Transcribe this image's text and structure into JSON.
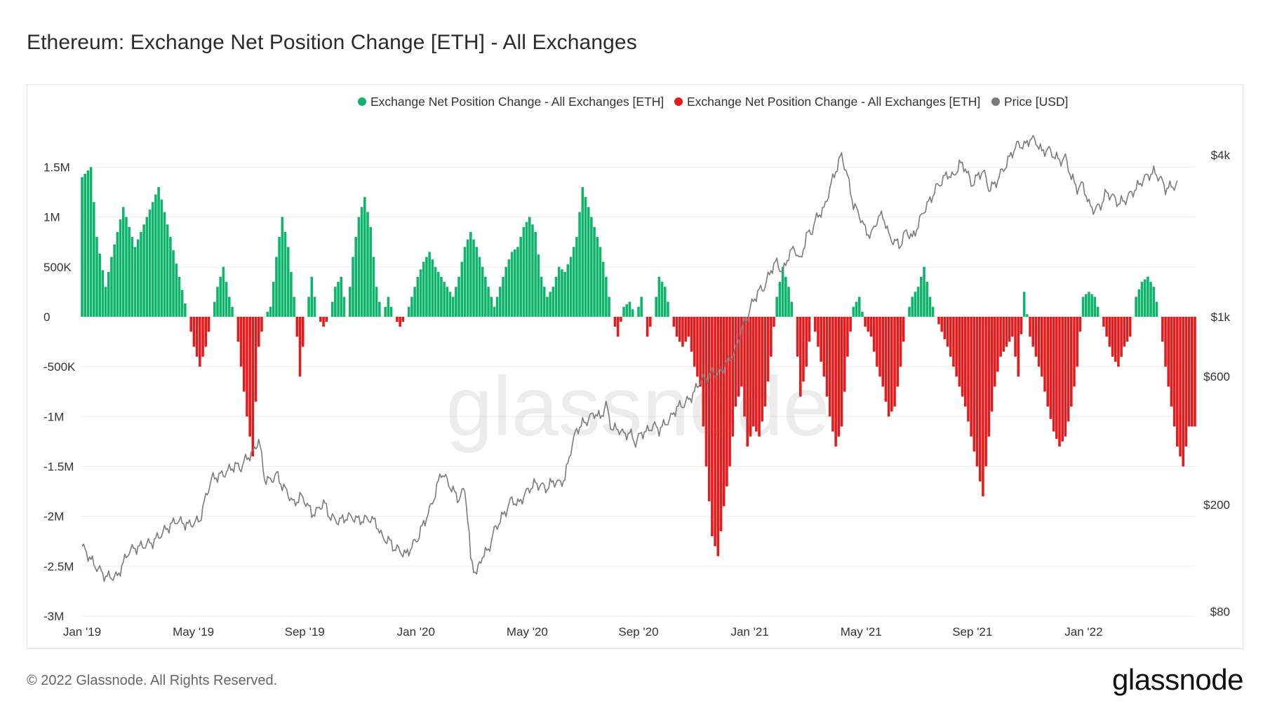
{
  "header": {
    "title": "Ethereum: Exchange Net Position Change [ETH] - All Exchanges"
  },
  "footer": {
    "copyright": "© 2022 Glassnode. All Rights Reserved.",
    "brand": "glassnode"
  },
  "watermark": "glassnode",
  "colors": {
    "positive": "#0eb46a",
    "negative": "#e8191b",
    "price": "#7b7b7b",
    "grid": "#ececec"
  },
  "chart_data": {
    "type": "bar",
    "title": "Ethereum: Exchange Net Position Change [ETH] - All Exchanges",
    "legend": [
      {
        "name": "Exchange Net Position Change - All Exchanges [ETH]",
        "color": "#0eb46a"
      },
      {
        "name": "Exchange Net Position Change - All Exchanges [ETH]",
        "color": "#e8191b"
      },
      {
        "name": "Price [USD]",
        "color": "#7b7b7b"
      }
    ],
    "legend_position": "top-right",
    "x_ticks": [
      "Jan '19",
      "May '19",
      "Sep '19",
      "Jan '20",
      "May '20",
      "Sep '20",
      "Jan '21",
      "May '21",
      "Sep '21",
      "Jan '22"
    ],
    "x_range": [
      "2019-01-01",
      "2022-05-01"
    ],
    "y_left": {
      "ticks": [
        "1.5M",
        "1M",
        "500K",
        "0",
        "-500K",
        "-1M",
        "-1.5M",
        "-2M",
        "-2.5M",
        "-3M"
      ],
      "tick_values": [
        1500000,
        1000000,
        500000,
        0,
        -500000,
        -1000000,
        -1500000,
        -2000000,
        -2500000,
        -3000000
      ],
      "range": [
        -3000000,
        2100000
      ]
    },
    "y_right": {
      "scale": "log",
      "ticks": [
        "$4k",
        "$1k",
        "$600",
        "$200",
        "$80"
      ],
      "tick_values": [
        4000,
        1000,
        600,
        200,
        80
      ],
      "range": [
        80,
        4000
      ]
    },
    "net_position_keypoints": [
      [
        0,
        1400000
      ],
      [
        3,
        1500000
      ],
      [
        5,
        800000
      ],
      [
        8,
        300000
      ],
      [
        10,
        600000
      ],
      [
        14,
        1100000
      ],
      [
        18,
        700000
      ],
      [
        22,
        1000000
      ],
      [
        26,
        1300000
      ],
      [
        30,
        800000
      ],
      [
        33,
        400000
      ],
      [
        36,
        0
      ],
      [
        38,
        -300000
      ],
      [
        40,
        -500000
      ],
      [
        42,
        -300000
      ],
      [
        44,
        0
      ],
      [
        46,
        300000
      ],
      [
        48,
        500000
      ],
      [
        50,
        200000
      ],
      [
        52,
        0
      ],
      [
        54,
        -500000
      ],
      [
        56,
        -1000000
      ],
      [
        58,
        -1400000
      ],
      [
        60,
        -300000
      ],
      [
        62,
        0
      ],
      [
        64,
        100000
      ],
      [
        66,
        600000
      ],
      [
        68,
        1000000
      ],
      [
        70,
        700000
      ],
      [
        72,
        200000
      ],
      [
        74,
        -600000
      ],
      [
        76,
        0
      ],
      [
        78,
        400000
      ],
      [
        80,
        0
      ],
      [
        82,
        -100000
      ],
      [
        84,
        0
      ],
      [
        86,
        300000
      ],
      [
        88,
        400000
      ],
      [
        90,
        0
      ],
      [
        92,
        600000
      ],
      [
        94,
        1000000
      ],
      [
        96,
        1200000
      ],
      [
        98,
        900000
      ],
      [
        100,
        300000
      ],
      [
        102,
        0
      ],
      [
        104,
        200000
      ],
      [
        106,
        0
      ],
      [
        108,
        -100000
      ],
      [
        110,
        0
      ],
      [
        112,
        200000
      ],
      [
        114,
        400000
      ],
      [
        116,
        550000
      ],
      [
        118,
        650000
      ],
      [
        120,
        500000
      ],
      [
        122,
        400000
      ],
      [
        124,
        300000
      ],
      [
        126,
        200000
      ],
      [
        128,
        400000
      ],
      [
        130,
        700000
      ],
      [
        132,
        850000
      ],
      [
        134,
        700000
      ],
      [
        136,
        500000
      ],
      [
        138,
        300000
      ],
      [
        140,
        100000
      ],
      [
        142,
        300000
      ],
      [
        144,
        500000
      ],
      [
        146,
        650000
      ],
      [
        148,
        700000
      ],
      [
        150,
        900000
      ],
      [
        152,
        1000000
      ],
      [
        154,
        850000
      ],
      [
        156,
        400000
      ],
      [
        158,
        200000
      ],
      [
        160,
        300000
      ],
      [
        162,
        500000
      ],
      [
        164,
        450000
      ],
      [
        166,
        600000
      ],
      [
        168,
        800000
      ],
      [
        170,
        1300000
      ],
      [
        172,
        1100000
      ],
      [
        174,
        900000
      ],
      [
        176,
        700000
      ],
      [
        178,
        400000
      ],
      [
        180,
        0
      ],
      [
        182,
        -200000
      ],
      [
        184,
        100000
      ],
      [
        186,
        150000
      ],
      [
        188,
        0
      ],
      [
        190,
        200000
      ],
      [
        192,
        -200000
      ],
      [
        194,
        0
      ],
      [
        196,
        400000
      ],
      [
        198,
        300000
      ],
      [
        200,
        0
      ],
      [
        202,
        -200000
      ],
      [
        204,
        -300000
      ],
      [
        206,
        -200000
      ],
      [
        208,
        -500000
      ],
      [
        210,
        -700000
      ],
      [
        212,
        -1500000
      ],
      [
        214,
        -2200000
      ],
      [
        216,
        -2400000
      ],
      [
        218,
        -1900000
      ],
      [
        220,
        -1500000
      ],
      [
        222,
        -900000
      ],
      [
        224,
        -700000
      ],
      [
        226,
        -1300000
      ],
      [
        228,
        -1100000
      ],
      [
        230,
        -1200000
      ],
      [
        232,
        -900000
      ],
      [
        234,
        -400000
      ],
      [
        236,
        200000
      ],
      [
        238,
        500000
      ],
      [
        240,
        300000
      ],
      [
        242,
        0
      ],
      [
        244,
        -800000
      ],
      [
        246,
        -500000
      ],
      [
        248,
        0
      ],
      [
        250,
        -300000
      ],
      [
        252,
        -600000
      ],
      [
        254,
        -1000000
      ],
      [
        256,
        -1300000
      ],
      [
        258,
        -1100000
      ],
      [
        260,
        -400000
      ],
      [
        262,
        100000
      ],
      [
        264,
        200000
      ],
      [
        266,
        -100000
      ],
      [
        268,
        -200000
      ],
      [
        270,
        -500000
      ],
      [
        272,
        -700000
      ],
      [
        274,
        -1000000
      ],
      [
        276,
        -900000
      ],
      [
        278,
        -500000
      ],
      [
        280,
        0
      ],
      [
        282,
        200000
      ],
      [
        284,
        300000
      ],
      [
        286,
        500000
      ],
      [
        288,
        200000
      ],
      [
        290,
        0
      ],
      [
        292,
        -150000
      ],
      [
        294,
        -300000
      ],
      [
        296,
        -500000
      ],
      [
        298,
        -700000
      ],
      [
        300,
        -900000
      ],
      [
        302,
        -1200000
      ],
      [
        304,
        -1500000
      ],
      [
        306,
        -1800000
      ],
      [
        308,
        -1200000
      ],
      [
        310,
        -700000
      ],
      [
        312,
        -400000
      ],
      [
        314,
        -300000
      ],
      [
        316,
        -200000
      ],
      [
        318,
        -600000
      ],
      [
        320,
        250000
      ],
      [
        322,
        -200000
      ],
      [
        324,
        -400000
      ],
      [
        326,
        -600000
      ],
      [
        328,
        -900000
      ],
      [
        330,
        -1150000
      ],
      [
        332,
        -1300000
      ],
      [
        334,
        -1200000
      ],
      [
        336,
        -900000
      ],
      [
        338,
        -500000
      ],
      [
        340,
        200000
      ],
      [
        342,
        250000
      ],
      [
        344,
        200000
      ],
      [
        346,
        0
      ],
      [
        348,
        -200000
      ],
      [
        350,
        -400000
      ],
      [
        352,
        -500000
      ],
      [
        354,
        -300000
      ],
      [
        356,
        -200000
      ],
      [
        358,
        200000
      ],
      [
        360,
        350000
      ],
      [
        362,
        400000
      ],
      [
        364,
        300000
      ],
      [
        366,
        0
      ],
      [
        368,
        -500000
      ],
      [
        370,
        -900000
      ],
      [
        372,
        -1300000
      ],
      [
        374,
        -1500000
      ],
      [
        376,
        -1100000
      ],
      [
        378,
        -1100000
      ]
    ],
    "price_keypoints": [
      [
        0,
        140
      ],
      [
        4,
        120
      ],
      [
        8,
        108
      ],
      [
        12,
        108
      ],
      [
        16,
        135
      ],
      [
        20,
        140
      ],
      [
        24,
        145
      ],
      [
        28,
        160
      ],
      [
        32,
        175
      ],
      [
        36,
        168
      ],
      [
        40,
        175
      ],
      [
        44,
        250
      ],
      [
        48,
        260
      ],
      [
        52,
        280
      ],
      [
        54,
        275
      ],
      [
        56,
        300
      ],
      [
        58,
        310
      ],
      [
        60,
        350
      ],
      [
        62,
        250
      ],
      [
        64,
        245
      ],
      [
        66,
        260
      ],
      [
        68,
        235
      ],
      [
        70,
        220
      ],
      [
        72,
        200
      ],
      [
        74,
        215
      ],
      [
        76,
        205
      ],
      [
        78,
        185
      ],
      [
        80,
        190
      ],
      [
        82,
        205
      ],
      [
        84,
        182
      ],
      [
        86,
        175
      ],
      [
        88,
        175
      ],
      [
        90,
        180
      ],
      [
        92,
        180
      ],
      [
        94,
        175
      ],
      [
        96,
        176
      ],
      [
        98,
        178
      ],
      [
        100,
        170
      ],
      [
        102,
        150
      ],
      [
        104,
        148
      ],
      [
        106,
        138
      ],
      [
        108,
        135
      ],
      [
        110,
        130
      ],
      [
        112,
        140
      ],
      [
        114,
        150
      ],
      [
        116,
        170
      ],
      [
        118,
        190
      ],
      [
        120,
        220
      ],
      [
        122,
        265
      ],
      [
        124,
        245
      ],
      [
        126,
        225
      ],
      [
        128,
        210
      ],
      [
        130,
        230
      ],
      [
        132,
        125
      ],
      [
        134,
        110
      ],
      [
        136,
        130
      ],
      [
        138,
        135
      ],
      [
        140,
        160
      ],
      [
        142,
        175
      ],
      [
        144,
        190
      ],
      [
        146,
        210
      ],
      [
        148,
        200
      ],
      [
        150,
        215
      ],
      [
        152,
        230
      ],
      [
        154,
        240
      ],
      [
        156,
        235
      ],
      [
        158,
        230
      ],
      [
        160,
        245
      ],
      [
        162,
        240
      ],
      [
        164,
        250
      ],
      [
        166,
        320
      ],
      [
        168,
        380
      ],
      [
        170,
        400
      ],
      [
        172,
        415
      ],
      [
        174,
        440
      ],
      [
        176,
        420
      ],
      [
        178,
        470
      ],
      [
        180,
        380
      ],
      [
        182,
        385
      ],
      [
        184,
        365
      ],
      [
        186,
        370
      ],
      [
        188,
        340
      ],
      [
        190,
        370
      ],
      [
        192,
        375
      ],
      [
        194,
        395
      ],
      [
        196,
        380
      ],
      [
        198,
        400
      ],
      [
        200,
        420
      ],
      [
        202,
        460
      ],
      [
        204,
        470
      ],
      [
        206,
        490
      ],
      [
        208,
        525
      ],
      [
        210,
        580
      ],
      [
        212,
        590
      ],
      [
        214,
        620
      ],
      [
        216,
        610
      ],
      [
        218,
        650
      ],
      [
        220,
        700
      ],
      [
        222,
        750
      ],
      [
        224,
        900
      ],
      [
        226,
        1000
      ],
      [
        228,
        1150
      ],
      [
        230,
        1250
      ],
      [
        232,
        1300
      ],
      [
        234,
        1500
      ],
      [
        236,
        1600
      ],
      [
        238,
        1450
      ],
      [
        240,
        1700
      ],
      [
        242,
        1800
      ],
      [
        244,
        1600
      ],
      [
        246,
        2000
      ],
      [
        248,
        2100
      ],
      [
        250,
        2400
      ],
      [
        252,
        2500
      ],
      [
        254,
        3000
      ],
      [
        256,
        3500
      ],
      [
        258,
        4000
      ],
      [
        260,
        3300
      ],
      [
        262,
        2600
      ],
      [
        264,
        2400
      ],
      [
        266,
        2100
      ],
      [
        268,
        2000
      ],
      [
        270,
        2300
      ],
      [
        272,
        2400
      ],
      [
        274,
        2000
      ],
      [
        276,
        1900
      ],
      [
        278,
        1850
      ],
      [
        280,
        2100
      ],
      [
        282,
        1950
      ],
      [
        284,
        2200
      ],
      [
        286,
        2500
      ],
      [
        288,
        2700
      ],
      [
        290,
        3000
      ],
      [
        292,
        3200
      ],
      [
        294,
        3400
      ],
      [
        296,
        3300
      ],
      [
        298,
        3700
      ],
      [
        300,
        3600
      ],
      [
        302,
        3100
      ],
      [
        304,
        3300
      ],
      [
        306,
        3500
      ],
      [
        308,
        3000
      ],
      [
        310,
        3100
      ],
      [
        312,
        3400
      ],
      [
        314,
        3700
      ],
      [
        316,
        4100
      ],
      [
        318,
        4400
      ],
      [
        320,
        4300
      ],
      [
        322,
        4600
      ],
      [
        324,
        4500
      ],
      [
        326,
        4100
      ],
      [
        328,
        4200
      ],
      [
        330,
        4000
      ],
      [
        332,
        3800
      ],
      [
        334,
        3900
      ],
      [
        336,
        3300
      ],
      [
        338,
        3000
      ],
      [
        340,
        3100
      ],
      [
        342,
        2600
      ],
      [
        344,
        2500
      ],
      [
        346,
        2600
      ],
      [
        348,
        2900
      ],
      [
        350,
        2800
      ],
      [
        352,
        2650
      ],
      [
        354,
        2700
      ],
      [
        356,
        2850
      ],
      [
        358,
        3000
      ],
      [
        360,
        3200
      ],
      [
        362,
        3350
      ],
      [
        364,
        3450
      ],
      [
        366,
        3300
      ],
      [
        368,
        3000
      ],
      [
        370,
        3050
      ],
      [
        372,
        3100
      ]
    ]
  }
}
